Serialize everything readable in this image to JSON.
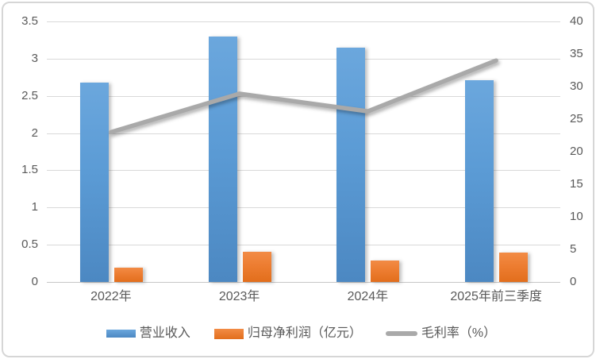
{
  "chart_data": {
    "type": "bar",
    "subtype": "combo-bar-line-dual-axis",
    "title": "",
    "xlabel": "",
    "ylabel": "",
    "categories": [
      "2022年",
      "2023年",
      "2024年",
      "2025年前三季度"
    ],
    "series": [
      {
        "id": "revenue",
        "name": "营业收入",
        "kind": "bar",
        "axis": "left",
        "color": "#5B9BD5",
        "values": [
          2.68,
          3.3,
          3.15,
          2.71
        ]
      },
      {
        "id": "net-profit",
        "name": "归母净利润（亿元）",
        "kind": "bar",
        "axis": "left",
        "color": "#ED7D31",
        "values": [
          0.19,
          0.41,
          0.29,
          0.39
        ]
      },
      {
        "id": "gross-margin",
        "name": "毛利率（%）",
        "kind": "line",
        "axis": "right",
        "color": "#A9A9A9",
        "values": [
          23,
          28.9,
          26.2,
          34
        ]
      }
    ],
    "left_axis": {
      "min": 0,
      "max": 3.5,
      "step": 0.5,
      "ticks": [
        "0",
        "0.5",
        "1",
        "1.5",
        "2",
        "2.5",
        "3",
        "3.5"
      ]
    },
    "right_axis": {
      "min": 0,
      "max": 40,
      "step": 5,
      "ticks": [
        "0",
        "5",
        "10",
        "15",
        "20",
        "25",
        "30",
        "35",
        "40"
      ]
    },
    "grid": true,
    "legend_position": "bottom"
  },
  "styles": {
    "grid_color": "#d9d9d9",
    "axis_line_color": "#c6c6c6",
    "tick_text_color": "#595959",
    "frame_border_color": "#d6d6d6",
    "background": "#ffffff"
  }
}
